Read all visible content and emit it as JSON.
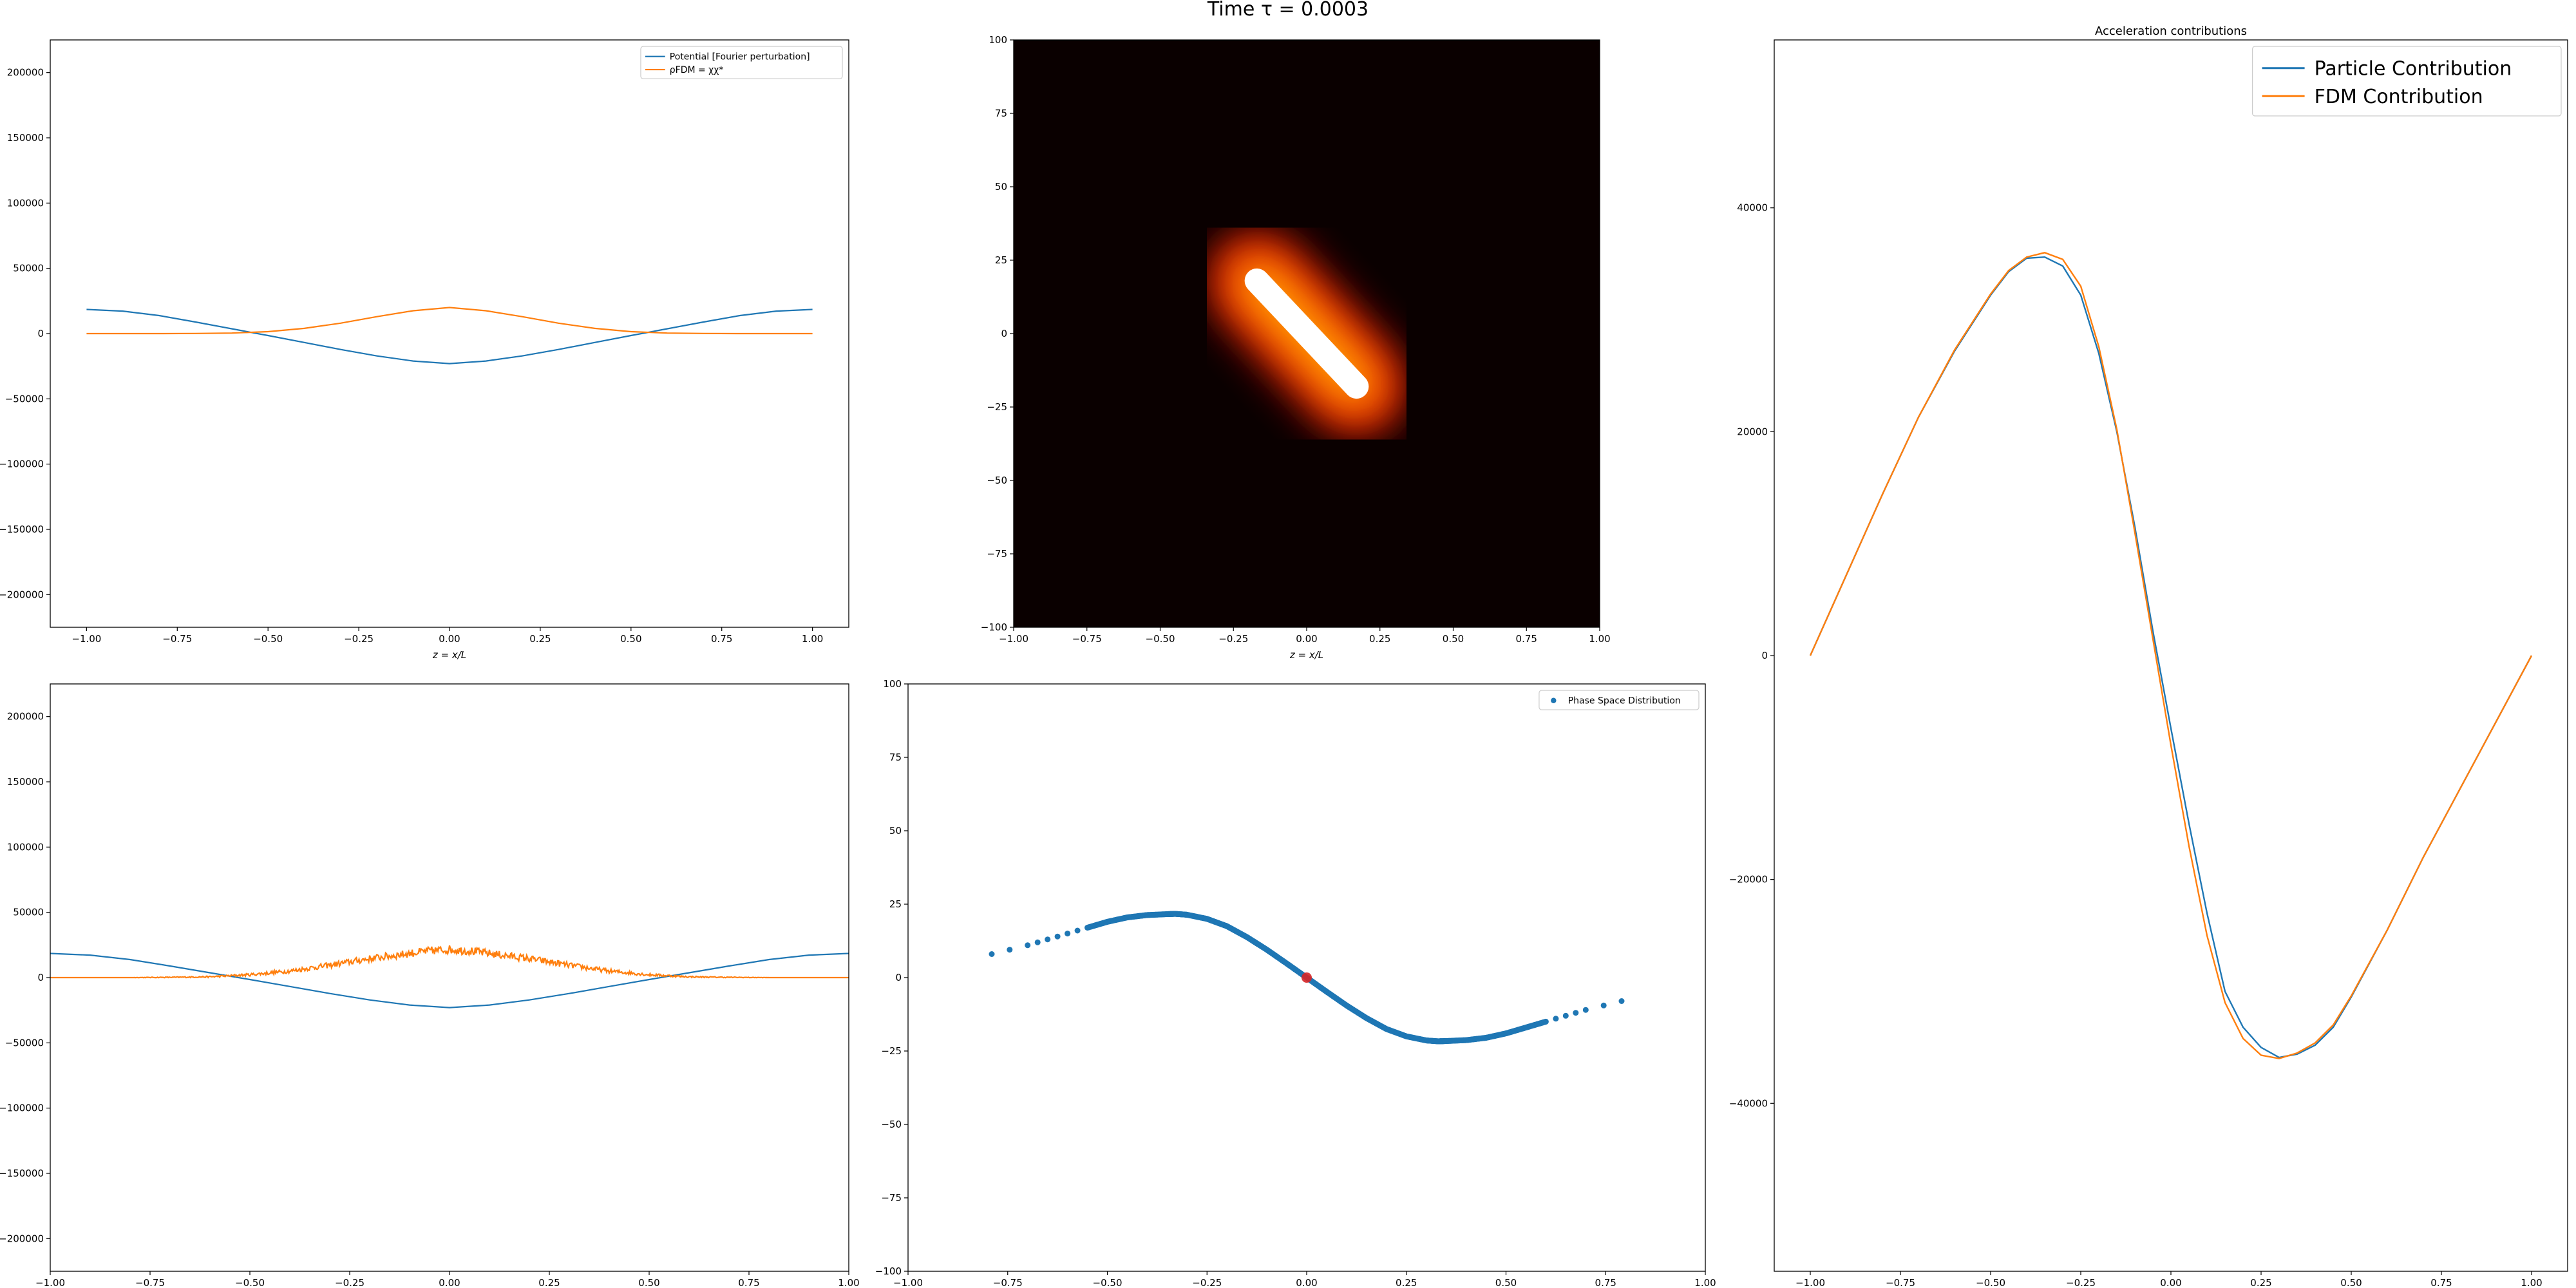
{
  "figure": {
    "suptitle": "Time τ = 0.0003"
  },
  "colors": {
    "c0": "#1f77b4",
    "c1": "#ff7f0e",
    "marker": "#d62728",
    "heatmap_bg": "#0a0000"
  },
  "chart_data": [
    {
      "id": "potential-density",
      "type": "line",
      "xlabel": "z = x/L",
      "ylabel": "",
      "xlim": [
        -1.1,
        1.1
      ],
      "ylim": [
        -225000,
        225000
      ],
      "xticks": [
        -1.0,
        -0.75,
        -0.5,
        -0.25,
        0.0,
        0.25,
        0.5,
        0.75,
        1.0
      ],
      "xtick_labels": [
        "−1.00",
        "−0.75",
        "−0.50",
        "−0.25",
        "0.00",
        "0.25",
        "0.50",
        "0.75",
        "1.00"
      ],
      "yticks": [
        -200000,
        -150000,
        -100000,
        -50000,
        0,
        50000,
        100000,
        150000,
        200000
      ],
      "ytick_labels": [
        "−200000",
        "−150000",
        "−100000",
        "−50000",
        "0",
        "50000",
        "100000",
        "150000",
        "200000"
      ],
      "legend": "top-right",
      "legend_labels": [
        "Potential [Fourier perturbation]",
        "ρFDM = χχ*"
      ],
      "series": [
        {
          "name": "Potential [Fourier perturbation]",
          "color": "c0",
          "x": [
            -1.0,
            -0.9,
            -0.8,
            -0.7,
            -0.6,
            -0.5,
            -0.4,
            -0.3,
            -0.2,
            -0.1,
            0.0,
            0.1,
            0.2,
            0.3,
            0.4,
            0.5,
            0.6,
            0.7,
            0.8,
            0.9,
            1.0
          ],
          "y": [
            18500,
            17200,
            13800,
            8900,
            3700,
            -1500,
            -6800,
            -12200,
            -17100,
            -21000,
            -23000,
            -21000,
            -17100,
            -12200,
            -6800,
            -1500,
            3700,
            8900,
            13800,
            17200,
            18500
          ]
        },
        {
          "name": "ρFDM = χχ*",
          "color": "c1",
          "x": [
            -1.0,
            -0.9,
            -0.8,
            -0.7,
            -0.6,
            -0.5,
            -0.4,
            -0.3,
            -0.2,
            -0.1,
            0.0,
            0.1,
            0.2,
            0.3,
            0.4,
            0.5,
            0.6,
            0.7,
            0.8,
            0.9,
            1.0
          ],
          "y": [
            0,
            0,
            0,
            100,
            400,
            1500,
            4000,
            8000,
            13000,
            17500,
            20000,
            17500,
            13000,
            8000,
            4000,
            1500,
            400,
            100,
            0,
            0,
            0
          ]
        }
      ]
    },
    {
      "id": "density-image",
      "type": "heatmap",
      "xlabel": "z = x/L",
      "ylabel": "",
      "xlim": [
        -1.0,
        1.0
      ],
      "ylim": [
        -100,
        100
      ],
      "xticks": [
        -1.0,
        -0.75,
        -0.5,
        -0.25,
        0.0,
        0.25,
        0.5,
        0.75,
        1.0
      ],
      "xtick_labels": [
        "−1.00",
        "−0.75",
        "−0.50",
        "−0.25",
        "0.00",
        "0.25",
        "0.50",
        "0.75",
        "1.00"
      ],
      "yticks": [
        -100,
        -75,
        -50,
        -25,
        0,
        25,
        50,
        75,
        100
      ],
      "ytick_labels": [
        "−100",
        "−75",
        "−50",
        "−25",
        "0",
        "25",
        "50",
        "75",
        "100"
      ],
      "colormap": "hot",
      "blob": {
        "from": [
          -0.17,
          18
        ],
        "to": [
          0.17,
          -18
        ]
      }
    },
    {
      "id": "particle-density",
      "type": "line",
      "xlabel": "",
      "ylabel": "",
      "xlim": [
        -1.0,
        1.0
      ],
      "ylim": [
        -225000,
        225000
      ],
      "xticks": [
        -1.0,
        -0.75,
        -0.5,
        -0.25,
        0.0,
        0.25,
        0.5,
        0.75,
        1.0
      ],
      "xtick_labels": [
        "−1.00",
        "−0.75",
        "−0.50",
        "−0.25",
        "0.00",
        "0.25",
        "0.50",
        "0.75",
        "1.00"
      ],
      "yticks": [
        -200000,
        -150000,
        -100000,
        -50000,
        0,
        50000,
        100000,
        150000,
        200000
      ],
      "ytick_labels": [
        "−200000",
        "−150000",
        "−100000",
        "−50000",
        "0",
        "50000",
        "100000",
        "150000",
        "200000"
      ],
      "series": [
        {
          "name": "",
          "color": "c0",
          "x": [
            -1.0,
            -0.9,
            -0.8,
            -0.7,
            -0.6,
            -0.5,
            -0.4,
            -0.3,
            -0.2,
            -0.1,
            0.0,
            0.1,
            0.2,
            0.3,
            0.4,
            0.5,
            0.6,
            0.7,
            0.8,
            0.9,
            1.0
          ],
          "y": [
            18500,
            17200,
            13800,
            8900,
            3700,
            -1500,
            -6800,
            -12200,
            -17100,
            -21000,
            -23000,
            -21000,
            -17100,
            -12200,
            -6800,
            -1500,
            3700,
            8900,
            13800,
            17200,
            18500
          ]
        },
        {
          "name": "",
          "color": "c1",
          "x": [
            -1.0,
            -0.9,
            -0.8,
            -0.7,
            -0.6,
            -0.5,
            -0.4,
            -0.3,
            -0.2,
            -0.1,
            -0.05,
            0.0,
            0.05,
            0.1,
            0.2,
            0.3,
            0.4,
            0.5,
            0.6,
            0.7,
            0.8,
            0.9,
            1.0
          ],
          "y": [
            0,
            0,
            0,
            200,
            600,
            2200,
            5000,
            9500,
            14500,
            18500,
            20500,
            21500,
            20500,
            18500,
            14500,
            9500,
            5000,
            2200,
            600,
            200,
            0,
            0,
            0
          ],
          "noisy": true
        }
      ]
    },
    {
      "id": "phase-space",
      "type": "scatter",
      "xlabel": "",
      "ylabel": "",
      "xlim": [
        -1.0,
        1.0
      ],
      "ylim": [
        -100,
        100
      ],
      "xticks": [
        -1.0,
        -0.75,
        -0.5,
        -0.25,
        0.0,
        0.25,
        0.5,
        0.75,
        1.0
      ],
      "xtick_labels": [
        "−1.00",
        "−0.75",
        "−0.50",
        "−0.25",
        "0.00",
        "0.25",
        "0.50",
        "0.75",
        "1.00"
      ],
      "yticks": [
        -100,
        -75,
        -50,
        -25,
        0,
        25,
        50,
        75,
        100
      ],
      "ytick_labels": [
        "−100",
        "−75",
        "−50",
        "−25",
        "0",
        "25",
        "50",
        "75",
        "100"
      ],
      "legend": "top-right",
      "legend_labels": [
        "Phase Space Distribution"
      ],
      "series": [
        {
          "name": "Phase Space Distribution",
          "color": "c0",
          "x": [
            -0.79,
            -0.7,
            -0.65,
            -0.6,
            -0.55,
            -0.5,
            -0.45,
            -0.4,
            -0.35,
            -0.33,
            -0.3,
            -0.25,
            -0.2,
            -0.15,
            -0.1,
            -0.05,
            0.0,
            0.05,
            0.1,
            0.15,
            0.2,
            0.25,
            0.3,
            0.33,
            0.35,
            0.4,
            0.45,
            0.5,
            0.55,
            0.6,
            0.65,
            0.7,
            0.79
          ],
          "y": [
            8,
            11,
            13,
            15,
            17,
            19,
            20.5,
            21.3,
            21.6,
            21.7,
            21.4,
            20,
            17.5,
            13.8,
            9.5,
            4.8,
            0,
            -4.8,
            -9.5,
            -13.8,
            -17.5,
            -20,
            -21.4,
            -21.7,
            -21.6,
            -21.3,
            -20.5,
            -19,
            -17,
            -15,
            -13,
            -11,
            -8
          ]
        }
      ],
      "marker_point": {
        "x": 0.0,
        "y": 0.0
      }
    },
    {
      "id": "acceleration",
      "type": "line",
      "title": "Acceleration contributions",
      "xlabel": "",
      "ylabel": "",
      "xlim": [
        -1.1,
        1.1
      ],
      "ylim": [
        -55000,
        55000
      ],
      "xticks": [
        -1.0,
        -0.75,
        -0.5,
        -0.25,
        0.0,
        0.25,
        0.5,
        0.75,
        1.0
      ],
      "xtick_labels": [
        "−1.00",
        "−0.75",
        "−0.50",
        "−0.25",
        "0.00",
        "0.25",
        "0.50",
        "0.75",
        "1.00"
      ],
      "yticks": [
        -40000,
        -20000,
        0,
        20000,
        40000
      ],
      "ytick_labels": [
        "−40000",
        "−20000",
        "0",
        "20000",
        "40000"
      ],
      "legend": "top-right",
      "legend_labels": [
        "Particle Contribution",
        "FDM Contribution"
      ],
      "series": [
        {
          "name": "Particle Contribution",
          "color": "c0",
          "x": [
            -1.0,
            -0.9,
            -0.8,
            -0.7,
            -0.6,
            -0.5,
            -0.45,
            -0.4,
            -0.35,
            -0.3,
            -0.25,
            -0.2,
            -0.15,
            -0.1,
            -0.05,
            0.0,
            0.05,
            0.1,
            0.15,
            0.2,
            0.25,
            0.3,
            0.35,
            0.4,
            0.45,
            0.5,
            0.6,
            0.7,
            0.8,
            0.9,
            1.0
          ],
          "y": [
            0,
            7200,
            14400,
            21300,
            27200,
            32200,
            34300,
            35500,
            35600,
            34800,
            32200,
            27000,
            20000,
            11500,
            2200,
            -6500,
            -15000,
            -23000,
            -30000,
            -33200,
            -35000,
            -35900,
            -35600,
            -34800,
            -33200,
            -30500,
            -24500,
            -18000,
            -12000,
            -6000,
            0
          ]
        },
        {
          "name": "FDM Contribution",
          "color": "c1",
          "x": [
            -1.0,
            -0.9,
            -0.8,
            -0.7,
            -0.6,
            -0.5,
            -0.45,
            -0.4,
            -0.35,
            -0.3,
            -0.25,
            -0.2,
            -0.15,
            -0.1,
            -0.05,
            0.0,
            0.05,
            0.1,
            0.15,
            0.2,
            0.25,
            0.3,
            0.35,
            0.4,
            0.45,
            0.5,
            0.6,
            0.7,
            0.8,
            0.9,
            1.0
          ],
          "y": [
            0,
            7200,
            14400,
            21300,
            27300,
            32300,
            34400,
            35600,
            36000,
            35400,
            33000,
            27600,
            20200,
            11000,
            1500,
            -8000,
            -17000,
            -25000,
            -31000,
            -34200,
            -35700,
            -36000,
            -35500,
            -34600,
            -33000,
            -30400,
            -24500,
            -18000,
            -12000,
            -6000,
            0
          ]
        }
      ]
    }
  ]
}
